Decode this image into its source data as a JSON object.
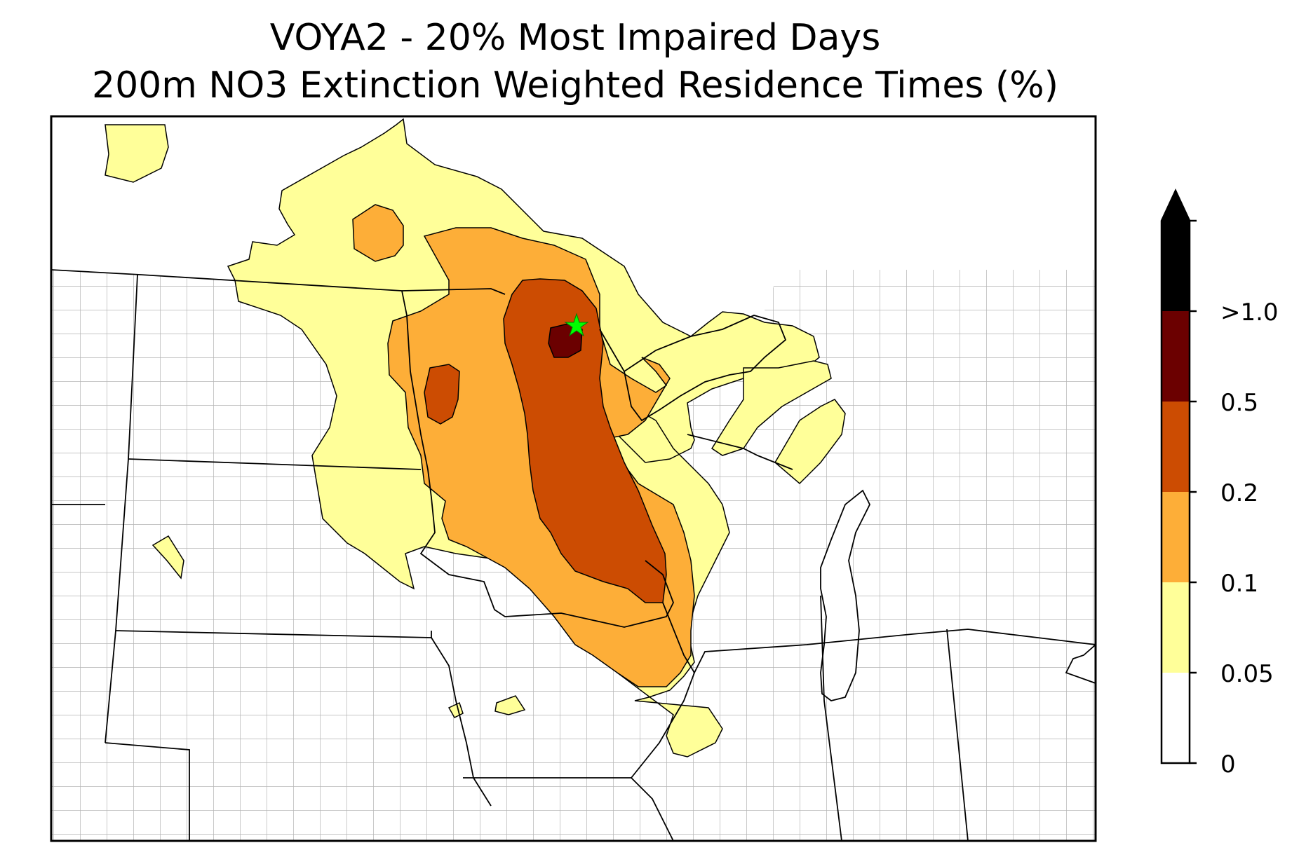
{
  "title": {
    "line1": "VOYA2 - 20% Most Impaired Days",
    "line2": "200m NO3 Extinction Weighted Residence Times (%)"
  },
  "legend": {
    "ticks": [
      "0",
      "0.05",
      "0.1",
      "0.2",
      "0.5",
      ">1.0"
    ],
    "bins": [
      {
        "color": "#ffffff"
      },
      {
        "color": "#ffff99"
      },
      {
        "color": "#fdae38"
      },
      {
        "color": "#cc4c02"
      },
      {
        "color": "#6b0000"
      },
      {
        "color": "#000000"
      }
    ]
  },
  "site_marker": {
    "symbol": "star",
    "color": "#00ff00"
  }
}
